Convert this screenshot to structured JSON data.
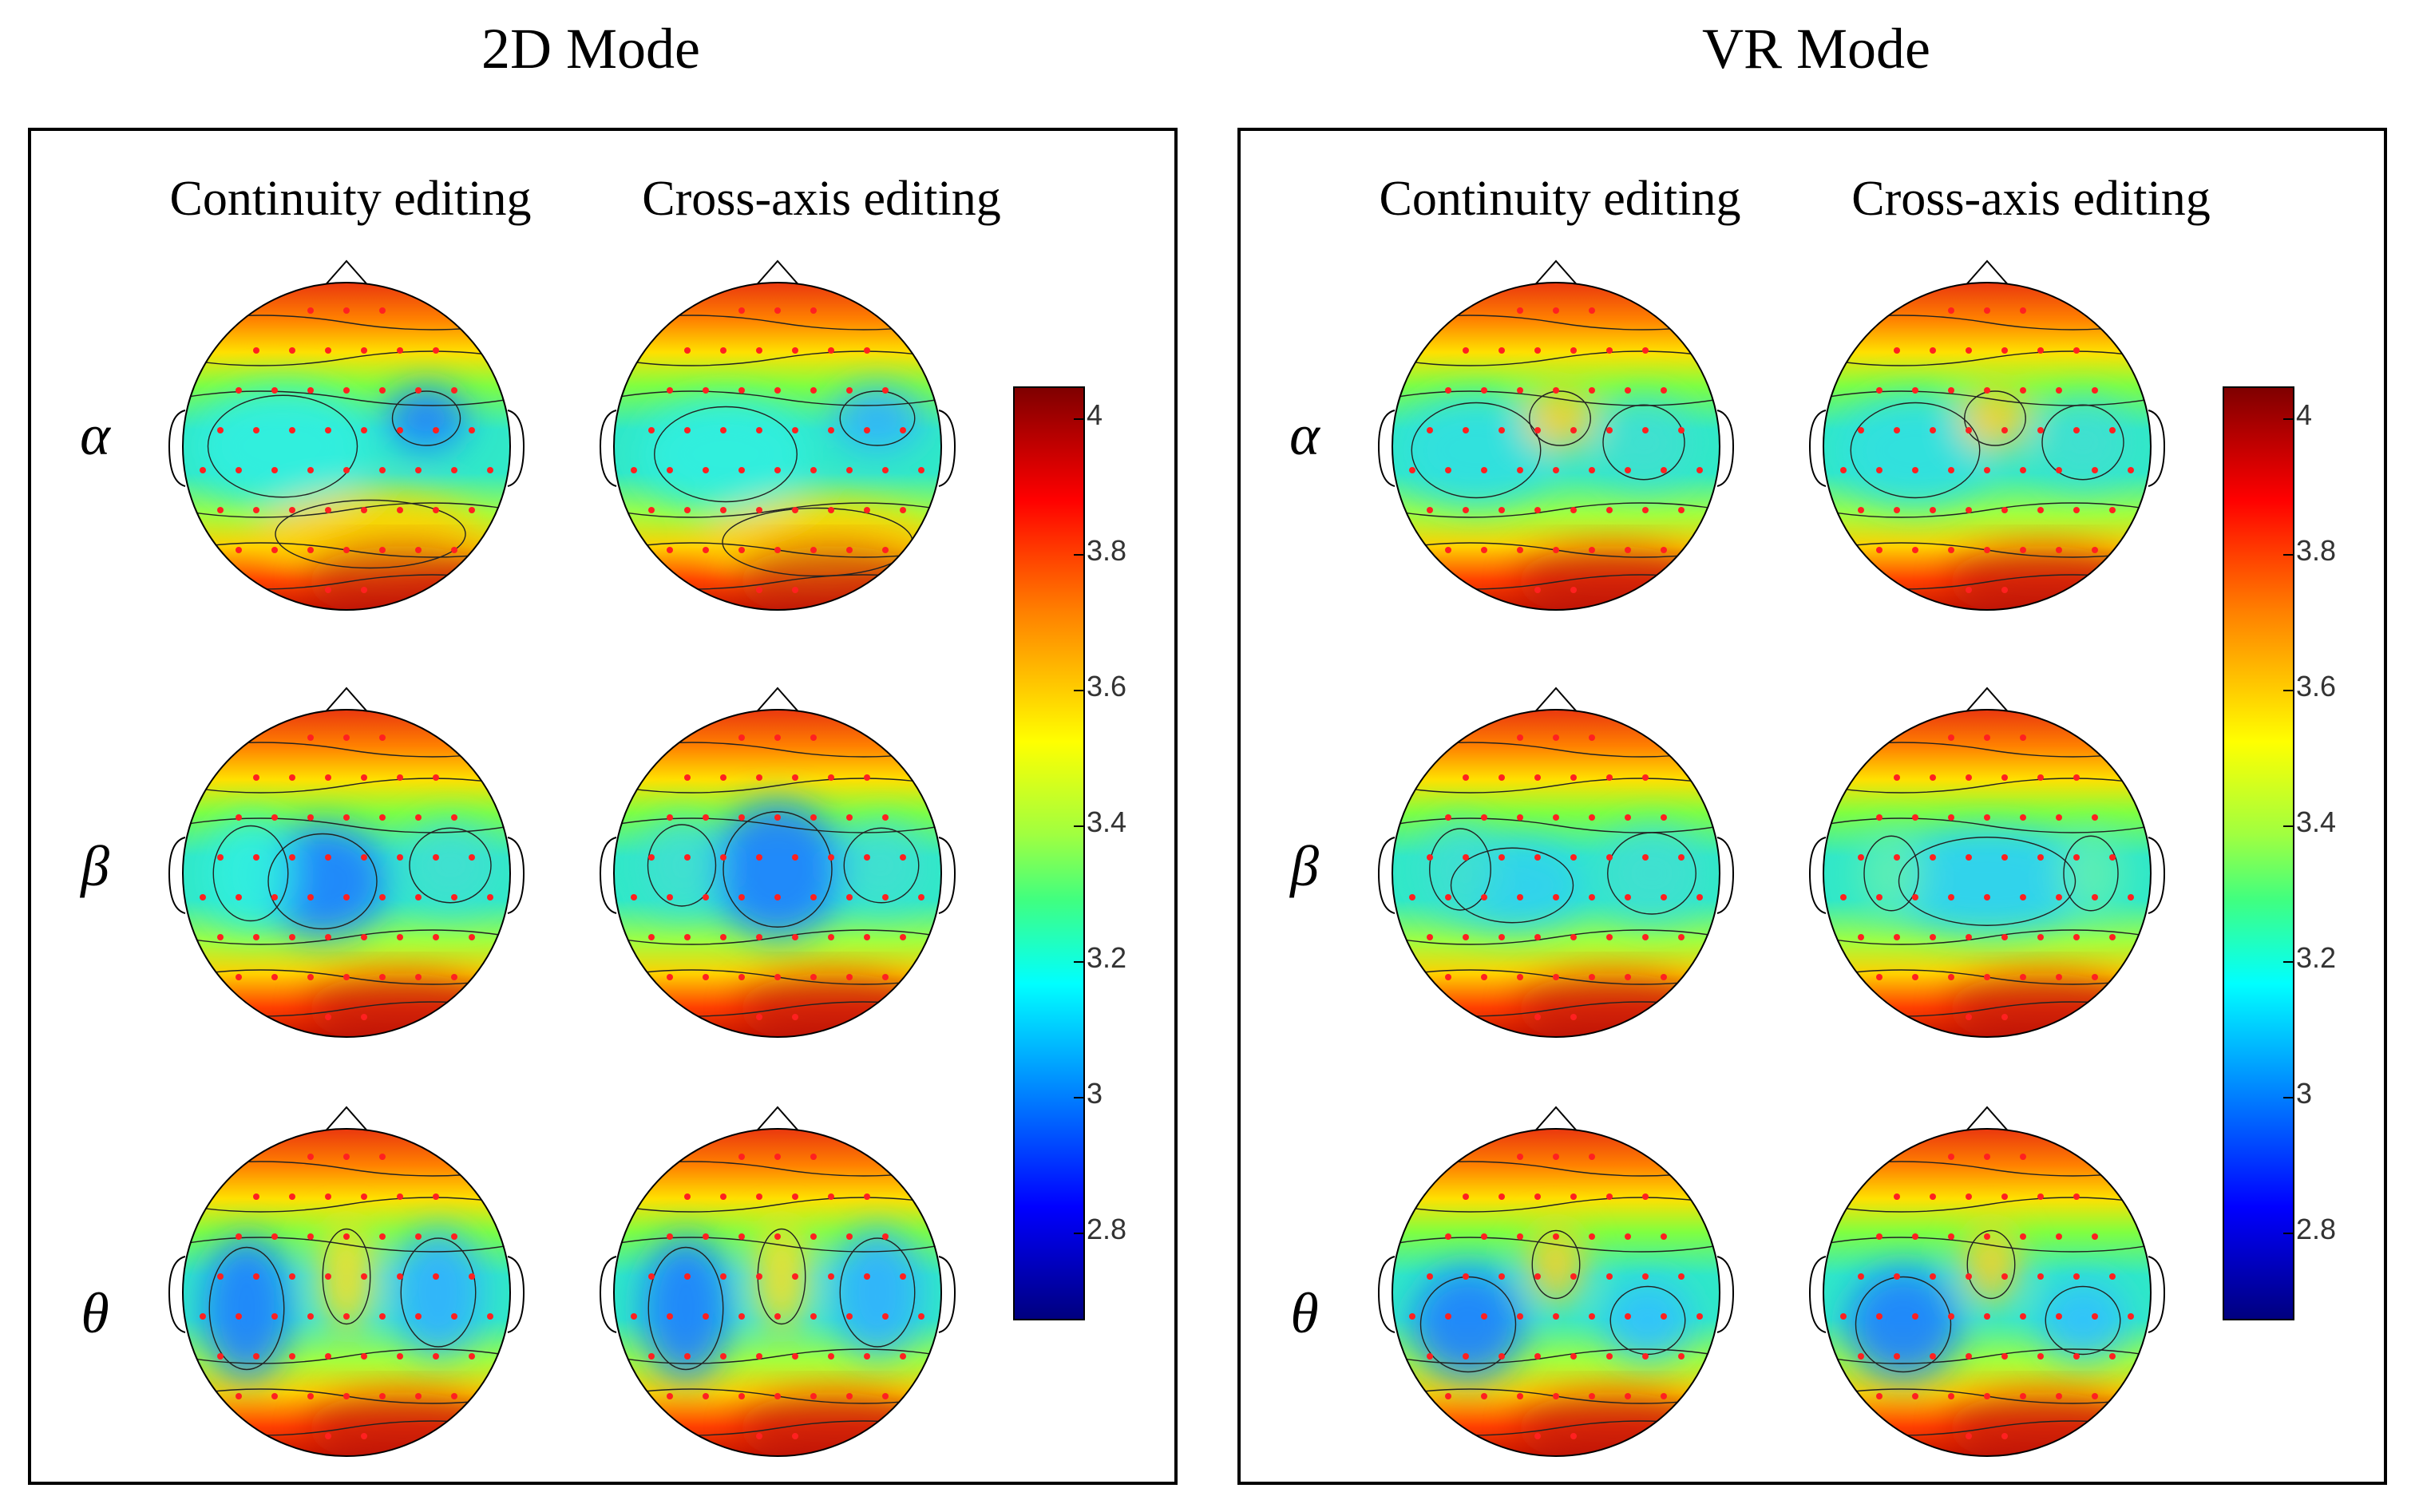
{
  "figure": {
    "panels": [
      {
        "title": "2D Mode",
        "columns": [
          "Continuity editing",
          "Cross-axis editing"
        ],
        "rows": [
          "α",
          "β",
          "θ"
        ]
      },
      {
        "title": "VR Mode",
        "columns": [
          "Continuity editing",
          "Cross-axis editing"
        ],
        "rows": [
          "α",
          "β",
          "θ"
        ]
      }
    ],
    "colorbar": {
      "ticks": [
        "4",
        "3.8",
        "3.6",
        "3.4",
        "3.2",
        "3",
        "2.8"
      ],
      "range": [
        2.7,
        4.05
      ],
      "colormap": "jet"
    }
  }
}
